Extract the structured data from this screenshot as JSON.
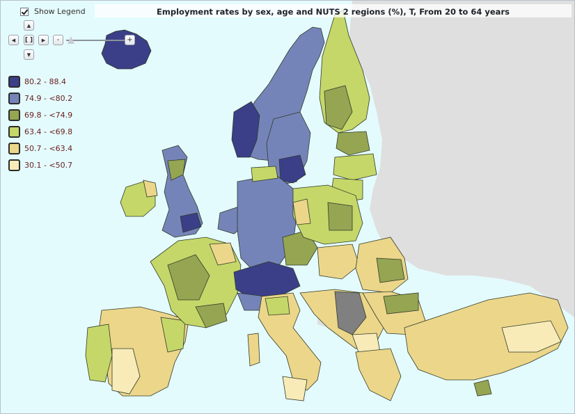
{
  "map": {
    "title": "Employment rates by sex, age and NUTS 2 regions (%), T, From 20 to 64 years"
  },
  "legend_toggle": {
    "label": "Show Legend",
    "checked": true
  },
  "navigation": {
    "pan_up": "▲",
    "pan_left": "◀",
    "pan_right": "▶",
    "pan_down": "▼",
    "zoom_extent": "[ ]",
    "zoom_out": "-",
    "zoom_in": "+",
    "zoom_level": 0
  },
  "legend": {
    "classes": [
      {
        "label": "80.2 - 88.4",
        "color": "#3b3f88"
      },
      {
        "label": "74.9 - <80.2",
        "color": "#7584b8"
      },
      {
        "label": "69.8 - <74.9",
        "color": "#95a552"
      },
      {
        "label": "63.4 - <69.8",
        "color": "#c5d769"
      },
      {
        "label": "50.7 - <63.4",
        "color": "#ecd68a"
      },
      {
        "label": "30.1 - <50.7",
        "color": "#f8ebb8"
      }
    ]
  },
  "colors": {
    "sea": "#e4fbfd",
    "non_eu_land": "#dfdfdf",
    "no_data": "#808080",
    "border": "#2f3a2a"
  }
}
